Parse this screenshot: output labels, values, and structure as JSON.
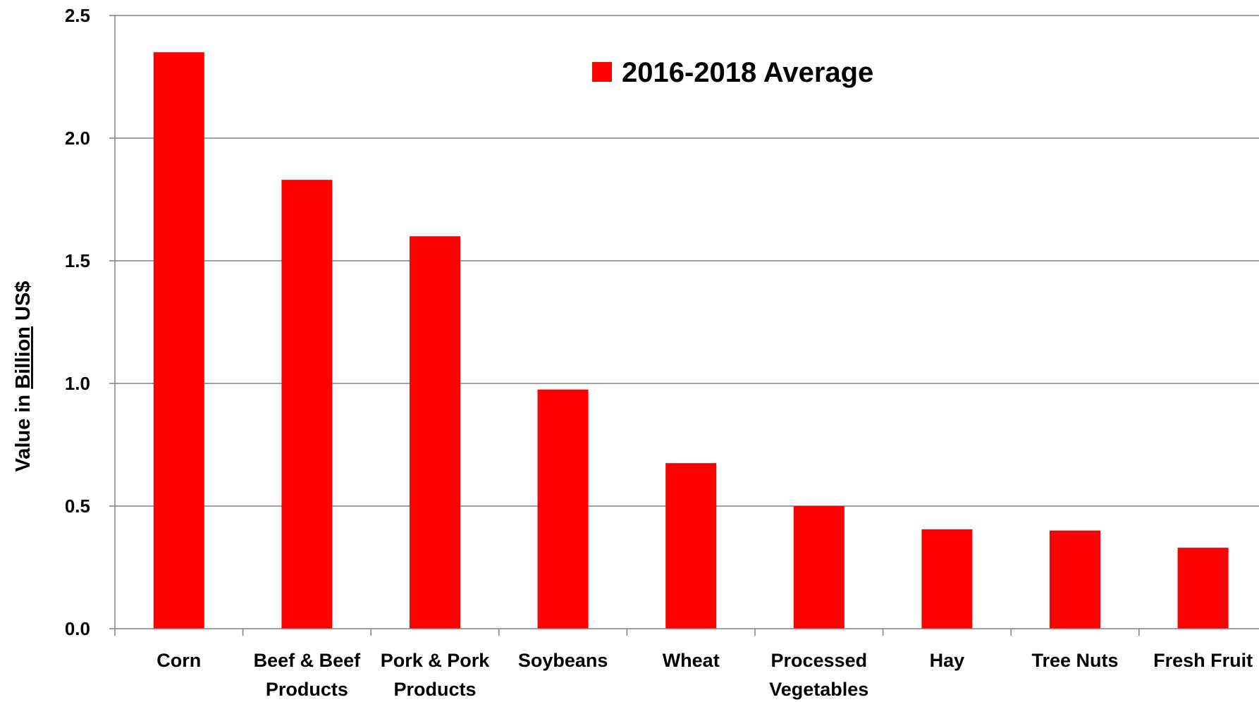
{
  "chart_data": {
    "type": "bar",
    "categories": [
      [
        "Corn"
      ],
      [
        "Beef & Beef",
        "Products"
      ],
      [
        "Pork & Pork",
        "Products"
      ],
      [
        "Soybeans"
      ],
      [
        "Wheat"
      ],
      [
        "Processed",
        "Vegetables"
      ],
      [
        "Hay"
      ],
      [
        "Tree Nuts"
      ],
      [
        "Fresh Fruit"
      ]
    ],
    "series": [
      {
        "name": "2016-2018 Average",
        "color": "#ff0000",
        "values": [
          2.35,
          1.83,
          1.6,
          0.975,
          0.675,
          0.5,
          0.405,
          0.4,
          0.33
        ]
      }
    ],
    "ylabel": {
      "prefix": "Value in ",
      "underlined": "Billion",
      "suffix": " US$"
    },
    "ylim": [
      0,
      2.5
    ],
    "yticks": [
      "0.0",
      "0.5",
      "1.0",
      "1.5",
      "2.0",
      "2.5"
    ],
    "grid": true,
    "legend": "top-center",
    "gridline_color": "#808080",
    "axis_color": "#808080"
  }
}
